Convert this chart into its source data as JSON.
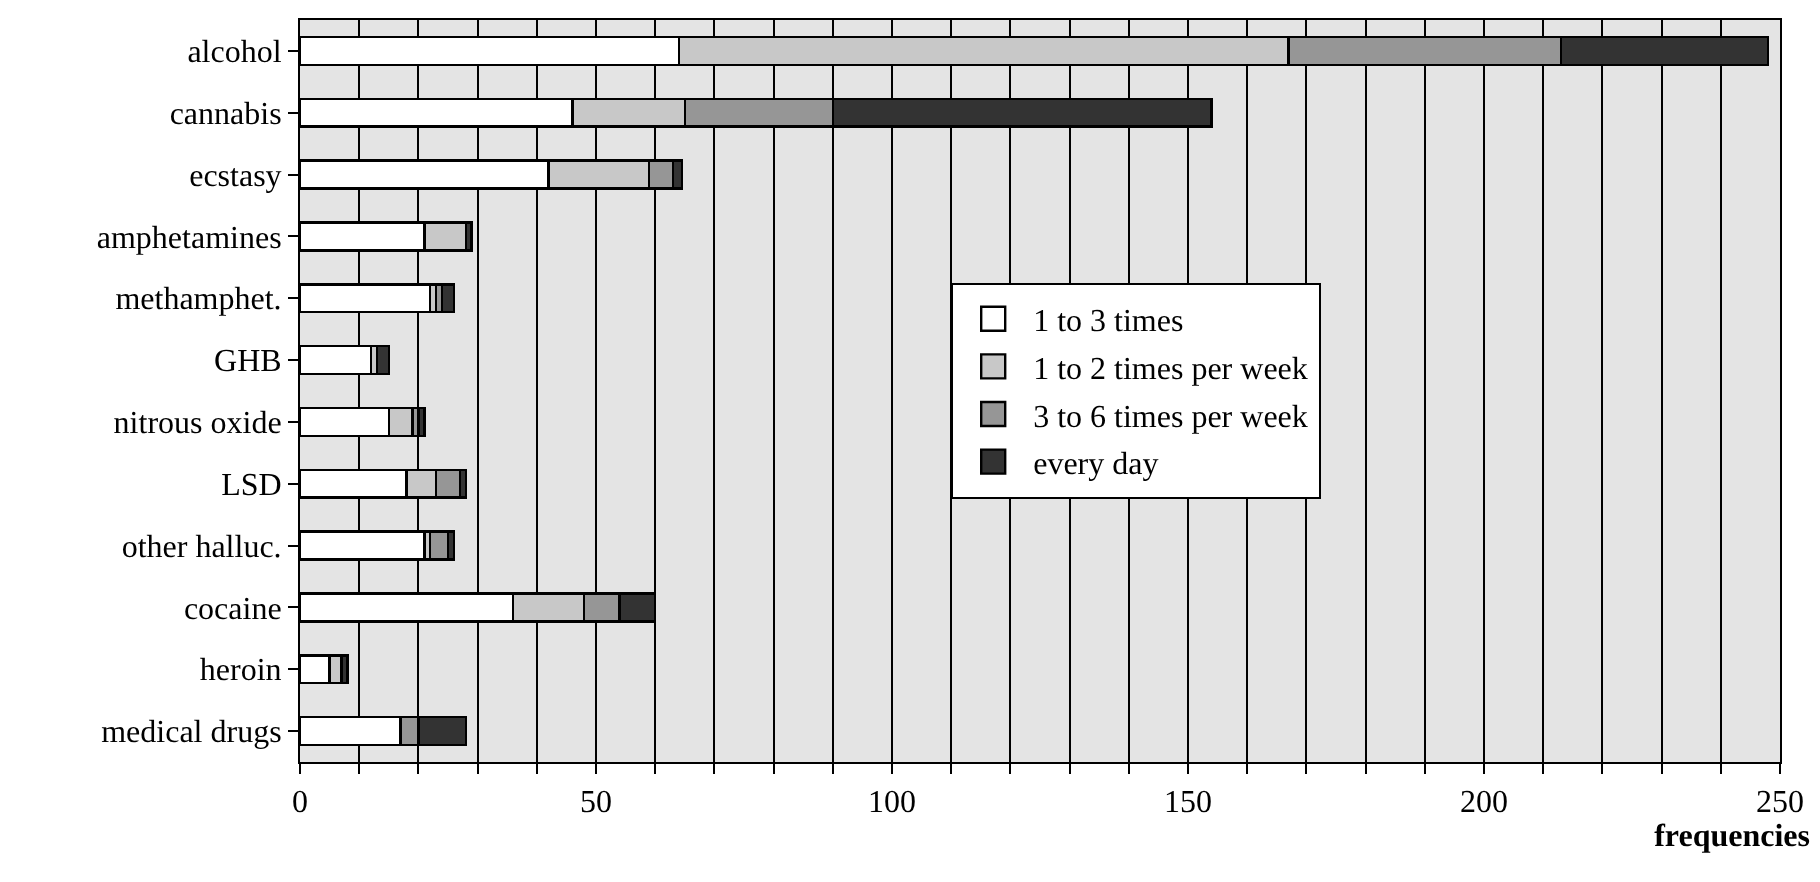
{
  "chart_data": {
    "type": "bar",
    "orientation": "horizontal",
    "stacked": true,
    "xlabel": "frequencies",
    "categories": [
      "alcohol",
      "cannabis",
      "ecstasy",
      "amphetamines",
      "methamphet.",
      "GHB",
      "nitrous oxide",
      "LSD",
      "other halluc.",
      "cocaine",
      "heroin",
      "medical drugs"
    ],
    "series": [
      {
        "name": "1 to 3 times",
        "color": "#ffffff",
        "values": [
          64,
          46,
          42,
          21,
          22,
          12,
          15,
          18,
          21,
          36,
          5,
          17
        ]
      },
      {
        "name": "1 to 2 times per week",
        "color": "#c8c8c8",
        "values": [
          103,
          19,
          17,
          7,
          1,
          1,
          4,
          5,
          1,
          12,
          2,
          0
        ]
      },
      {
        "name": "3 to 6 times per week",
        "color": "#969696",
        "values": [
          46,
          25,
          4,
          0,
          1,
          0,
          1,
          4,
          3,
          6,
          0,
          3
        ]
      },
      {
        "name": "every day",
        "color": "#333333",
        "values": [
          35,
          64,
          1.5,
          1,
          2,
          2,
          1,
          1,
          1,
          6,
          1,
          8
        ]
      }
    ],
    "xlim": [
      0,
      250
    ],
    "xticks": [
      0,
      {
        "value": 10,
        "label": null
      },
      {
        "value": 20,
        "label": null
      },
      {
        "value": 30,
        "label": null
      },
      {
        "value": 40,
        "label": null
      },
      50,
      {
        "value": 60,
        "label": null
      },
      {
        "value": 70,
        "label": null
      },
      {
        "value": 80,
        "label": null
      },
      {
        "value": 90,
        "label": null
      },
      100,
      {
        "value": 110,
        "label": null
      },
      {
        "value": 120,
        "label": null
      },
      {
        "value": 130,
        "label": null
      },
      {
        "value": 140,
        "label": null
      },
      150,
      {
        "value": 160,
        "label": null
      },
      {
        "value": 170,
        "label": null
      },
      {
        "value": 180,
        "label": null
      },
      {
        "value": 190,
        "label": null
      },
      200,
      {
        "value": 210,
        "label": null
      },
      {
        "value": 220,
        "label": null
      },
      {
        "value": 230,
        "label": null
      },
      {
        "value": 240,
        "label": null
      },
      250
    ],
    "grid": "x",
    "legend": "center"
  }
}
